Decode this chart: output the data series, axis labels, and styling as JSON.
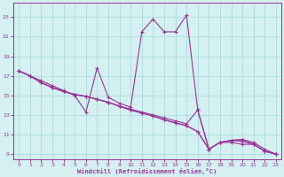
{
  "xlabel": "Windchill (Refroidissement éolien,°C)",
  "bg_color": "#d4f0f0",
  "line_color": "#993399",
  "grid_color": "#aadddd",
  "xlim": [
    -0.5,
    23.5
  ],
  "ylim": [
    8.5,
    24.5
  ],
  "xticks": [
    0,
    1,
    2,
    3,
    4,
    5,
    6,
    7,
    8,
    9,
    10,
    11,
    12,
    13,
    14,
    15,
    16,
    17,
    18,
    19,
    20,
    21,
    22,
    23
  ],
  "yticks": [
    9,
    11,
    13,
    15,
    17,
    19,
    21,
    23
  ],
  "line1_x": [
    0,
    1,
    2,
    3,
    4,
    5,
    6,
    7,
    8,
    9,
    10,
    11,
    12,
    13,
    14,
    15,
    16,
    17,
    18,
    19,
    20,
    21,
    22,
    23
  ],
  "line1_y": [
    17.5,
    17.0,
    16.3,
    15.8,
    15.4,
    15.1,
    14.9,
    14.6,
    14.3,
    13.9,
    13.6,
    13.3,
    13.0,
    12.7,
    12.4,
    12.1,
    13.5,
    9.5,
    10.2,
    10.4,
    10.5,
    10.0,
    9.3,
    9.0
  ],
  "line2_x": [
    0,
    1,
    2,
    3,
    4,
    5,
    6,
    7,
    8,
    9,
    10,
    11,
    12,
    13,
    14,
    15,
    16,
    17,
    18,
    19,
    20,
    21,
    22,
    23
  ],
  "line2_y": [
    17.5,
    17.0,
    16.3,
    15.8,
    15.4,
    15.1,
    14.9,
    14.6,
    14.3,
    13.9,
    13.5,
    13.2,
    12.9,
    12.5,
    12.2,
    11.9,
    11.3,
    9.5,
    10.2,
    10.4,
    10.3,
    10.0,
    9.3,
    9.0
  ],
  "line3_x": [
    0,
    1,
    2,
    3,
    4,
    5,
    6,
    7,
    8,
    9,
    10,
    11,
    12,
    13,
    14,
    15,
    16,
    17,
    18,
    19,
    20,
    21,
    22,
    23
  ],
  "line3_y": [
    17.5,
    17.0,
    16.3,
    15.8,
    15.4,
    15.1,
    14.9,
    14.6,
    14.3,
    13.9,
    13.5,
    13.2,
    12.9,
    12.5,
    12.2,
    11.9,
    11.3,
    9.5,
    10.2,
    10.2,
    10.0,
    10.0,
    9.3,
    9.0
  ],
  "line4_x": [
    0,
    1,
    2,
    3,
    4,
    5,
    6,
    7,
    8,
    9,
    10,
    11,
    12,
    13,
    14,
    15,
    16,
    17,
    18,
    19,
    20,
    21,
    22,
    23
  ],
  "line4_y": [
    17.5,
    17.0,
    16.5,
    16.0,
    15.5,
    15.0,
    13.3,
    17.8,
    14.8,
    14.2,
    13.8,
    21.5,
    22.8,
    21.5,
    21.5,
    23.2,
    13.5,
    9.5,
    10.2,
    10.4,
    10.5,
    10.2,
    9.5,
    9.0
  ]
}
